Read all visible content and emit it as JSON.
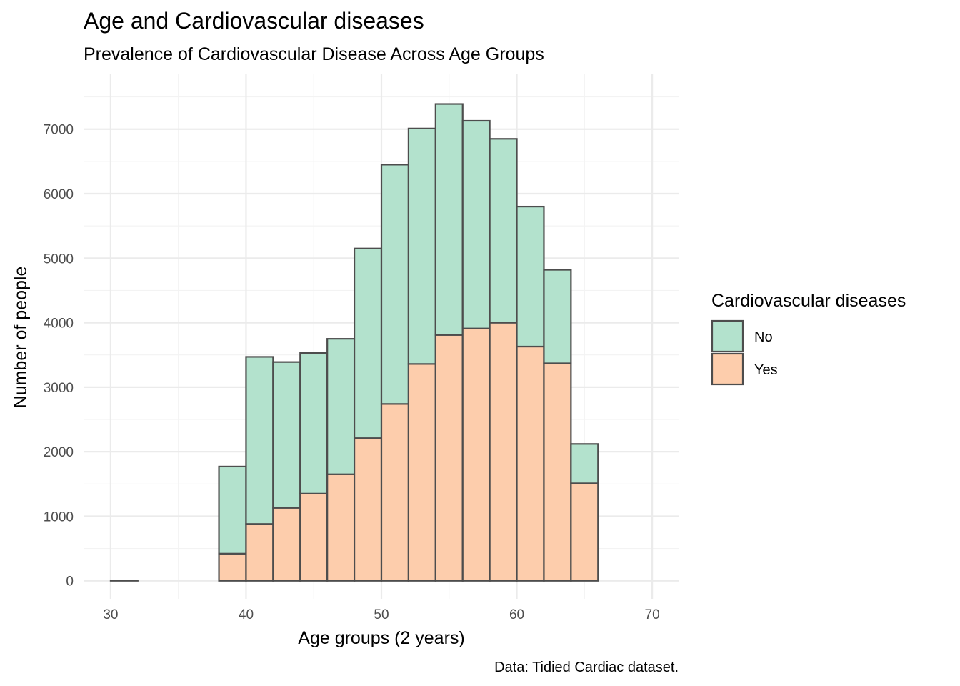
{
  "chart_data": {
    "type": "bar",
    "title": "Age and Cardiovascular diseases",
    "subtitle": "Prevalence of Cardiovascular Disease Across Age Groups",
    "xlabel": "Age groups (2 years)",
    "ylabel": "Number of people",
    "caption": "Data: Tidied Cardiac dataset.",
    "legend_title": "Cardiovascular diseases",
    "legend_position": "right",
    "grid": true,
    "stacked": true,
    "xlim": [
      28,
      72
    ],
    "ylim": [
      -280,
      7850
    ],
    "x_ticks": [
      30,
      40,
      50,
      60,
      70
    ],
    "y_ticks": [
      0,
      1000,
      2000,
      3000,
      4000,
      5000,
      6000,
      7000
    ],
    "bins": [
      {
        "x0": 30,
        "x1": 32,
        "yes": 0,
        "no": 5
      },
      {
        "x0": 32,
        "x1": 34,
        "yes": 0,
        "no": 0
      },
      {
        "x0": 34,
        "x1": 36,
        "yes": 0,
        "no": 0
      },
      {
        "x0": 36,
        "x1": 38,
        "yes": 0,
        "no": 0
      },
      {
        "x0": 38,
        "x1": 40,
        "yes": 420,
        "no": 1350
      },
      {
        "x0": 40,
        "x1": 42,
        "yes": 880,
        "no": 2590
      },
      {
        "x0": 42,
        "x1": 44,
        "yes": 1130,
        "no": 2260
      },
      {
        "x0": 44,
        "x1": 46,
        "yes": 1350,
        "no": 2180
      },
      {
        "x0": 46,
        "x1": 48,
        "yes": 1650,
        "no": 2100
      },
      {
        "x0": 48,
        "x1": 50,
        "yes": 2210,
        "no": 2940
      },
      {
        "x0": 50,
        "x1": 52,
        "yes": 2740,
        "no": 3710
      },
      {
        "x0": 52,
        "x1": 54,
        "yes": 3360,
        "no": 3650
      },
      {
        "x0": 54,
        "x1": 56,
        "yes": 3810,
        "no": 3580
      },
      {
        "x0": 56,
        "x1": 58,
        "yes": 3910,
        "no": 3220
      },
      {
        "x0": 58,
        "x1": 60,
        "yes": 4000,
        "no": 2850
      },
      {
        "x0": 60,
        "x1": 62,
        "yes": 3630,
        "no": 2170
      },
      {
        "x0": 62,
        "x1": 64,
        "yes": 3370,
        "no": 1450
      },
      {
        "x0": 64,
        "x1": 66,
        "yes": 1510,
        "no": 610
      },
      {
        "x0": 66,
        "x1": 68,
        "yes": 0,
        "no": 0
      },
      {
        "x0": 68,
        "x1": 70,
        "yes": 0,
        "no": 0
      }
    ],
    "series": [
      {
        "name": "No",
        "key": "no",
        "color": "#b3e2cd"
      },
      {
        "name": "Yes",
        "key": "yes",
        "color": "#fdcdac"
      }
    ]
  }
}
